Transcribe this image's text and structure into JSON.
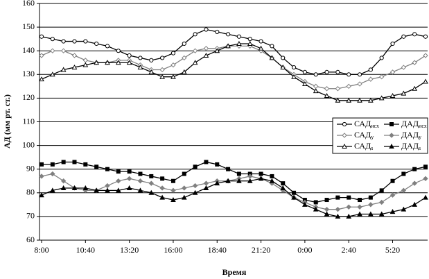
{
  "chart_data": {
    "type": "line",
    "y_label": "АД (мм рт. ст.)",
    "x_label": "Время",
    "categories": [
      "8:00",
      null,
      null,
      null,
      "10:40",
      null,
      null,
      null,
      "13:20",
      null,
      null,
      null,
      "16:00",
      null,
      null,
      null,
      "18:40",
      null,
      null,
      null,
      "21:20",
      null,
      null,
      null,
      "0:00",
      null,
      null,
      null,
      "2:40",
      null,
      null,
      null,
      "5:20",
      null,
      null,
      null
    ],
    "ylim": [
      60,
      160
    ],
    "yticks": [
      60,
      70,
      80,
      90,
      100,
      110,
      120,
      130,
      140,
      150,
      160
    ],
    "grid": true,
    "legend": "right",
    "series": [
      {
        "name": "САД",
        "name_sub": "исх",
        "color": "#000000",
        "marker": "circle",
        "filled": false,
        "values": [
          146,
          145,
          144,
          144,
          144,
          143,
          142,
          140,
          138,
          137,
          136,
          137,
          139,
          143,
          147,
          149,
          148,
          147,
          146,
          145,
          144,
          142,
          137,
          133,
          131,
          130,
          131,
          131,
          130,
          130,
          132,
          137,
          143,
          146,
          147,
          146
        ]
      },
      {
        "name": "ДАД",
        "name_sub": "исх",
        "color": "#000000",
        "marker": "square",
        "filled": true,
        "values": [
          92,
          92,
          93,
          93,
          92,
          91,
          90,
          89,
          89,
          88,
          87,
          86,
          85,
          88,
          91,
          93,
          92,
          90,
          88,
          88,
          88,
          87,
          84,
          80,
          77,
          76,
          77,
          78,
          78,
          77,
          78,
          81,
          85,
          88,
          90,
          91
        ]
      },
      {
        "name": "САД",
        "name_sub": "у",
        "color": "#808080",
        "marker": "diamond",
        "filled": false,
        "values": [
          138,
          140,
          140,
          138,
          136,
          135,
          135,
          136,
          136,
          134,
          132,
          132,
          134,
          137,
          140,
          141,
          141,
          142,
          142,
          142,
          140,
          137,
          133,
          130,
          127,
          125,
          124,
          124,
          125,
          126,
          128,
          129,
          131,
          133,
          135,
          138
        ]
      },
      {
        "name": "ДАД",
        "name_sub": "у",
        "color": "#808080",
        "marker": "diamond",
        "filled": true,
        "values": [
          87,
          88,
          85,
          82,
          81,
          81,
          83,
          85,
          86,
          85,
          84,
          82,
          81,
          82,
          83,
          84,
          85,
          85,
          86,
          87,
          86,
          84,
          81,
          78,
          76,
          74,
          73,
          73,
          74,
          74,
          75,
          76,
          79,
          81,
          84,
          86
        ]
      },
      {
        "name": "САД",
        "name_sub": "s",
        "color": "#000000",
        "marker": "triangle",
        "filled": false,
        "values": [
          128,
          130,
          132,
          133,
          134,
          135,
          135,
          135,
          135,
          133,
          131,
          129,
          129,
          131,
          135,
          138,
          140,
          142,
          143,
          143,
          141,
          137,
          133,
          129,
          126,
          123,
          121,
          119,
          119,
          119,
          119,
          120,
          121,
          122,
          124,
          127
        ]
      },
      {
        "name": "ДАД",
        "name_sub": "s",
        "color": "#000000",
        "marker": "triangle",
        "filled": true,
        "values": [
          79,
          81,
          82,
          82,
          82,
          81,
          81,
          81,
          82,
          81,
          80,
          78,
          77,
          78,
          80,
          82,
          84,
          85,
          85,
          85,
          86,
          85,
          82,
          78,
          75,
          73,
          71,
          70,
          70,
          71,
          71,
          71,
          72,
          73,
          75,
          78
        ]
      }
    ]
  }
}
